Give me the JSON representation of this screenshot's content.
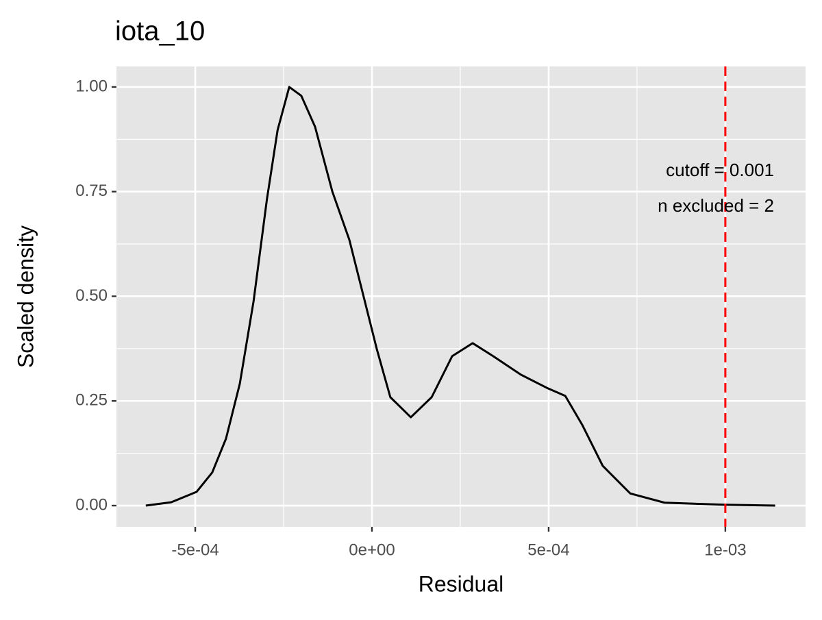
{
  "chart_data": {
    "type": "line",
    "title": "iota_10",
    "x_label": "Residual",
    "y_label": "Scaled density",
    "x": [
      -0.00064,
      -0.000568,
      -0.000496,
      -0.000452,
      -0.000413,
      -0.000374,
      -0.000335,
      -0.000297,
      -0.000267,
      -0.000234,
      -0.0002,
      -0.000161,
      -0.000112,
      -6.4e-05,
      -2.5e-05,
      1.4e-05,
      5.2e-05,
      0.00011,
      0.000169,
      0.000227,
      0.000285,
      0.000343,
      0.000421,
      0.000498,
      0.000547,
      0.000595,
      0.000653,
      0.000731,
      0.000828,
      0.001,
      0.001141
    ],
    "series": [
      {
        "name": "density",
        "color": "#000000",
        "values": [
          0,
          0.008,
          0.033,
          0.079,
          0.16,
          0.291,
          0.488,
          0.733,
          0.897,
          1.0,
          0.979,
          0.905,
          0.75,
          0.635,
          0.504,
          0.373,
          0.259,
          0.211,
          0.259,
          0.357,
          0.388,
          0.357,
          0.313,
          0.28,
          0.262,
          0.193,
          0.095,
          0.029,
          0.007,
          0.002,
          0
        ]
      }
    ],
    "xlim": [
      -0.000723,
      0.001227
    ],
    "ylim": [
      -0.0507,
      1.049
    ],
    "xticks": [
      {
        "value": -0.0005,
        "label": "-5e-04"
      },
      {
        "value": 0,
        "label": "0e+00"
      },
      {
        "value": 0.0005,
        "label": "5e-04"
      },
      {
        "value": 0.001,
        "label": "1e-03"
      }
    ],
    "yticks": [
      {
        "value": 0,
        "label": "0.00"
      },
      {
        "value": 0.25,
        "label": "0.25"
      },
      {
        "value": 0.5,
        "label": "0.50"
      },
      {
        "value": 0.75,
        "label": "0.75"
      },
      {
        "value": 1,
        "label": "1.00"
      }
    ],
    "x_minor_breaks": [
      -0.00025,
      0.00025,
      0.00075
    ],
    "y_minor_breaks": [
      0.125,
      0.375,
      0.625,
      0.875
    ],
    "grid": true,
    "cutoff": {
      "value": 0.001,
      "color": "#ff0000"
    },
    "annotations": [
      "cutoff = 0.001",
      "n excluded = 2"
    ]
  }
}
